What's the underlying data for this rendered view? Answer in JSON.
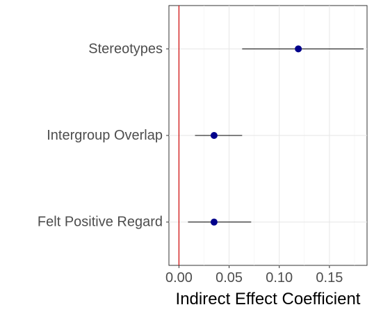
{
  "chart_data": {
    "type": "forest",
    "title": "",
    "xlabel": "Indirect Effect Coefficient",
    "ylabel": "",
    "xlim": [
      -0.01,
      0.1875
    ],
    "x_ticks": [
      0.0,
      0.05,
      0.1,
      0.15
    ],
    "x_tick_labels": [
      "0.00",
      "0.05",
      "0.10",
      "0.15"
    ],
    "grid": true,
    "reference_line": {
      "x": 0,
      "color": "#cc0000"
    },
    "point_color": "#00008b",
    "interval_color": "#000000",
    "rows": [
      {
        "label": "Stereotypes",
        "estimate": 0.119,
        "lower": 0.063,
        "upper": 0.184
      },
      {
        "label": "Intergroup Overlap",
        "estimate": 0.035,
        "lower": 0.016,
        "upper": 0.063
      },
      {
        "label": "Felt Positive Regard",
        "estimate": 0.035,
        "lower": 0.009,
        "upper": 0.072
      }
    ]
  }
}
